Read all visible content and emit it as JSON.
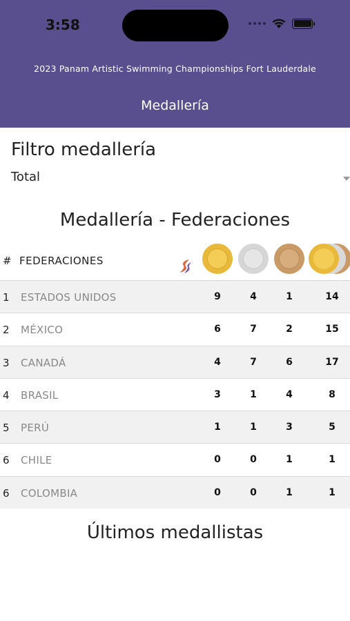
{
  "status_bar": {
    "time": "3:58"
  },
  "header": {
    "app_title": "2023 Panam Artistic Swimming Championships Fort Lauderdale",
    "page_title": "Medallería"
  },
  "filter": {
    "heading": "Filtro medallería",
    "selected": "Total"
  },
  "table": {
    "heading": "Medallería - Federaciones",
    "columns": {
      "rank": "#",
      "federation": "FEDERACIONES"
    },
    "rows": [
      {
        "rank": "1",
        "name": "ESTADOS UNIDOS",
        "gold": "9",
        "silver": "4",
        "bronze": "1",
        "total": "14"
      },
      {
        "rank": "2",
        "name": "MÉXICO",
        "gold": "6",
        "silver": "7",
        "bronze": "2",
        "total": "15"
      },
      {
        "rank": "3",
        "name": "CANADÁ",
        "gold": "4",
        "silver": "7",
        "bronze": "6",
        "total": "17"
      },
      {
        "rank": "4",
        "name": "BRASIL",
        "gold": "3",
        "silver": "1",
        "bronze": "4",
        "total": "8"
      },
      {
        "rank": "5",
        "name": "PERÚ",
        "gold": "1",
        "silver": "1",
        "bronze": "3",
        "total": "5"
      },
      {
        "rank": "6",
        "name": "CHILE",
        "gold": "0",
        "silver": "0",
        "bronze": "1",
        "total": "1"
      },
      {
        "rank": "6",
        "name": "COLOMBIA",
        "gold": "0",
        "silver": "0",
        "bronze": "1",
        "total": "1"
      }
    ]
  },
  "latest": {
    "heading": "Últimos medallistas"
  },
  "colors": {
    "header_bg": "#5a4f8e",
    "gold": "#e8b93a",
    "silver": "#d6d6d6",
    "bronze": "#c99a66"
  },
  "icons": [
    "wifi-icon",
    "battery-icon",
    "dropdown-arrow-icon",
    "brand-logo-icon",
    "gold-medal-icon",
    "silver-medal-icon",
    "bronze-medal-icon",
    "total-medals-icon"
  ]
}
